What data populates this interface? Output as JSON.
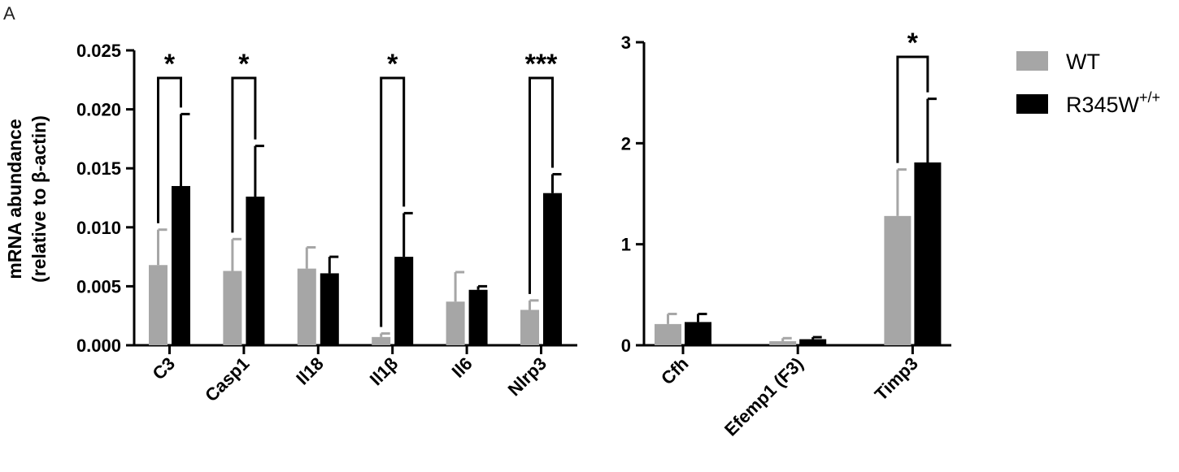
{
  "panel_label": "A",
  "legend": {
    "items": [
      {
        "label": "WT",
        "sup": "",
        "color": "#a6a6a6"
      },
      {
        "label": "R345W",
        "sup": "+/+",
        "color": "#000000"
      }
    ]
  },
  "chart_data": [
    {
      "type": "bar",
      "ylabel_line1": "mRNA abundance",
      "ylabel_line2": "(relative to β-actin)",
      "ylim": [
        0,
        0.025
      ],
      "yticks": [
        "0.000",
        "0.005",
        "0.010",
        "0.015",
        "0.020",
        "0.025"
      ],
      "categories": [
        "C3",
        "Casp1",
        "Il18",
        "Il1β",
        "Il6",
        "Nlrp3"
      ],
      "series": [
        {
          "name": "WT",
          "values": [
            0.0068,
            0.0063,
            0.0065,
            0.0007,
            0.0037,
            0.003
          ],
          "errors": [
            0.003,
            0.0027,
            0.0018,
            0.0003,
            0.0025,
            0.0008
          ]
        },
        {
          "name": "R345W+/+",
          "values": [
            0.0135,
            0.0126,
            0.0061,
            0.0075,
            0.0047,
            0.0129
          ],
          "errors": [
            0.0061,
            0.0043,
            0.0014,
            0.0037,
            0.0003,
            0.0016
          ]
        }
      ],
      "significance": [
        {
          "category": "C3",
          "label": "*"
        },
        {
          "category": "Casp1",
          "label": "*"
        },
        {
          "category": "Il1β",
          "label": "*"
        },
        {
          "category": "Nlrp3",
          "label": "***"
        }
      ]
    },
    {
      "type": "bar",
      "ylim": [
        0,
        3
      ],
      "yticks": [
        "0",
        "1",
        "2",
        "3"
      ],
      "categories": [
        "Cfh",
        "Efemp1 (F3)",
        "Timp3"
      ],
      "series": [
        {
          "name": "WT",
          "values": [
            0.21,
            0.04,
            1.28
          ],
          "errors": [
            0.1,
            0.03,
            0.46
          ]
        },
        {
          "name": "R345W+/+",
          "values": [
            0.23,
            0.06,
            1.81
          ],
          "errors": [
            0.08,
            0.02,
            0.63
          ]
        }
      ],
      "significance": [
        {
          "category": "Timp3",
          "label": "*"
        }
      ]
    }
  ]
}
